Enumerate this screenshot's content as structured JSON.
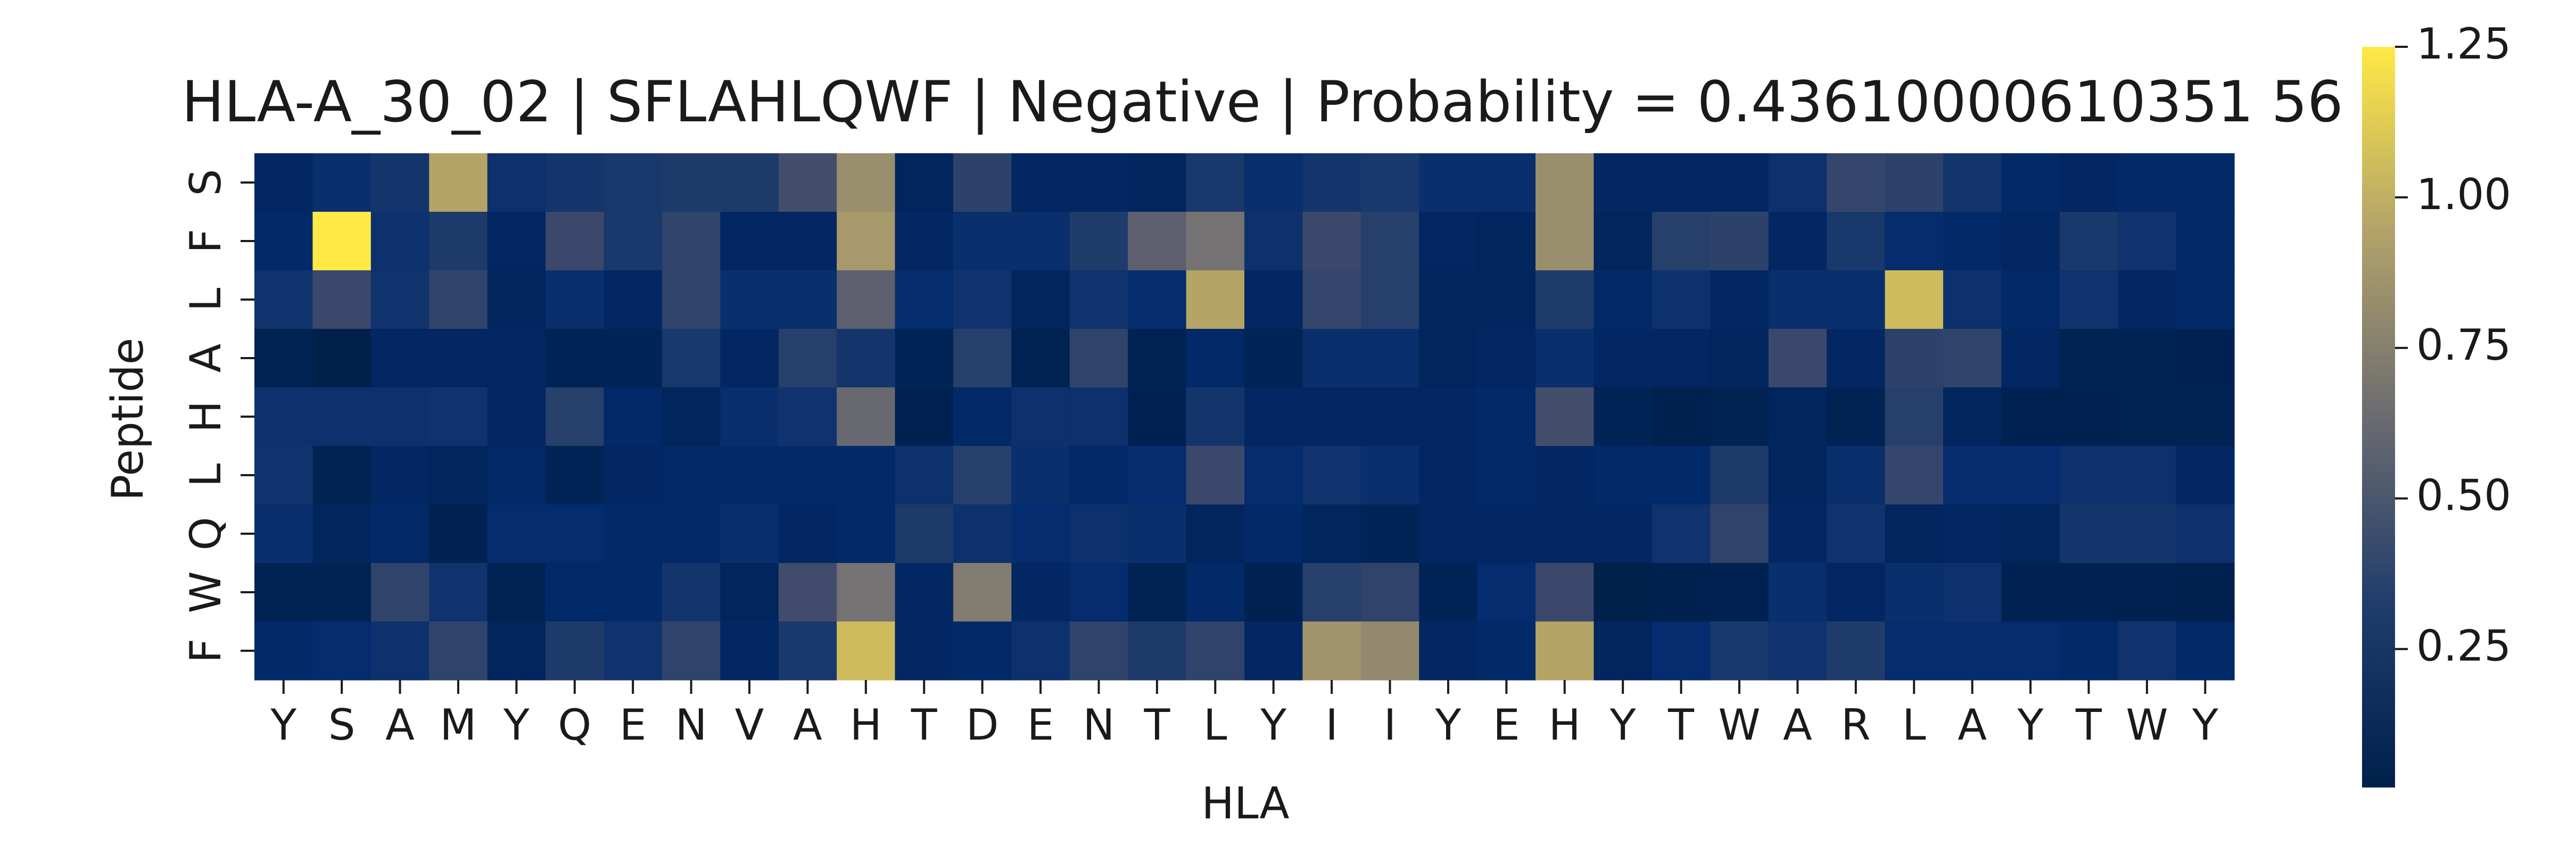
{
  "chart_data": {
    "type": "heatmap",
    "title": "HLA-A_30_02 | SFLAHLQWF | Negative | Probability = 0.43610000610351 56",
    "xlabel": "HLA",
    "ylabel": "Peptide",
    "x_tick_labels": [
      "Y",
      "S",
      "A",
      "M",
      "Y",
      "Q",
      "E",
      "N",
      "V",
      "A",
      "H",
      "T",
      "D",
      "E",
      "N",
      "T",
      "L",
      "Y",
      "I",
      "I",
      "Y",
      "E",
      "H",
      "Y",
      "T",
      "W",
      "A",
      "R",
      "L",
      "A",
      "Y",
      "T",
      "W",
      "Y"
    ],
    "y_tick_labels": [
      "S",
      "F",
      "L",
      "A",
      "H",
      "L",
      "Q",
      "W",
      "F"
    ],
    "values": [
      [
        0.1,
        0.18,
        0.25,
        0.95,
        0.2,
        0.25,
        0.28,
        0.3,
        0.3,
        0.5,
        0.85,
        0.08,
        0.38,
        0.1,
        0.1,
        0.08,
        0.28,
        0.18,
        0.25,
        0.28,
        0.18,
        0.18,
        0.85,
        0.1,
        0.1,
        0.1,
        0.2,
        0.42,
        0.38,
        0.25,
        0.12,
        0.1,
        0.12,
        0.12
      ],
      [
        0.12,
        1.25,
        0.2,
        0.3,
        0.1,
        0.45,
        0.28,
        0.4,
        0.1,
        0.1,
        0.9,
        0.1,
        0.18,
        0.18,
        0.32,
        0.6,
        0.7,
        0.2,
        0.45,
        0.35,
        0.1,
        0.08,
        0.85,
        0.08,
        0.35,
        0.38,
        0.1,
        0.28,
        0.15,
        0.12,
        0.1,
        0.28,
        0.22,
        0.12
      ],
      [
        0.22,
        0.45,
        0.22,
        0.4,
        0.08,
        0.18,
        0.1,
        0.4,
        0.18,
        0.18,
        0.6,
        0.15,
        0.22,
        0.08,
        0.22,
        0.15,
        0.95,
        0.1,
        0.42,
        0.35,
        0.08,
        0.08,
        0.32,
        0.12,
        0.2,
        0.1,
        0.18,
        0.18,
        1.05,
        0.2,
        0.12,
        0.22,
        0.1,
        0.12
      ],
      [
        0.05,
        0.02,
        0.1,
        0.1,
        0.1,
        0.06,
        0.06,
        0.28,
        0.1,
        0.35,
        0.25,
        0.06,
        0.35,
        0.05,
        0.4,
        0.05,
        0.12,
        0.06,
        0.18,
        0.18,
        0.08,
        0.1,
        0.18,
        0.1,
        0.1,
        0.08,
        0.45,
        0.1,
        0.38,
        0.4,
        0.1,
        0.05,
        0.05,
        0.04
      ],
      [
        0.2,
        0.2,
        0.2,
        0.22,
        0.1,
        0.35,
        0.12,
        0.08,
        0.18,
        0.22,
        0.65,
        0.04,
        0.12,
        0.2,
        0.2,
        0.04,
        0.25,
        0.1,
        0.1,
        0.1,
        0.1,
        0.12,
        0.5,
        0.06,
        0.03,
        0.05,
        0.08,
        0.05,
        0.35,
        0.08,
        0.04,
        0.04,
        0.05,
        0.05
      ],
      [
        0.22,
        0.05,
        0.1,
        0.08,
        0.12,
        0.06,
        0.1,
        0.12,
        0.12,
        0.12,
        0.12,
        0.2,
        0.35,
        0.18,
        0.12,
        0.15,
        0.45,
        0.15,
        0.22,
        0.18,
        0.1,
        0.12,
        0.1,
        0.12,
        0.12,
        0.3,
        0.08,
        0.18,
        0.42,
        0.15,
        0.15,
        0.2,
        0.2,
        0.1
      ],
      [
        0.18,
        0.08,
        0.12,
        0.04,
        0.15,
        0.15,
        0.12,
        0.12,
        0.18,
        0.1,
        0.12,
        0.3,
        0.2,
        0.15,
        0.2,
        0.18,
        0.08,
        0.12,
        0.08,
        0.06,
        0.1,
        0.1,
        0.1,
        0.1,
        0.22,
        0.4,
        0.1,
        0.22,
        0.08,
        0.1,
        0.08,
        0.25,
        0.25,
        0.2
      ],
      [
        0.05,
        0.05,
        0.4,
        0.22,
        0.05,
        0.12,
        0.12,
        0.25,
        0.08,
        0.48,
        0.7,
        0.1,
        0.75,
        0.1,
        0.15,
        0.05,
        0.12,
        0.04,
        0.35,
        0.4,
        0.06,
        0.15,
        0.45,
        0.02,
        0.03,
        0.04,
        0.18,
        0.1,
        0.18,
        0.2,
        0.04,
        0.04,
        0.04,
        0.03
      ],
      [
        0.12,
        0.15,
        0.2,
        0.4,
        0.08,
        0.3,
        0.22,
        0.4,
        0.1,
        0.28,
        1.05,
        0.1,
        0.12,
        0.2,
        0.4,
        0.3,
        0.4,
        0.1,
        0.88,
        0.82,
        0.1,
        0.12,
        0.95,
        0.08,
        0.15,
        0.28,
        0.22,
        0.32,
        0.15,
        0.15,
        0.15,
        0.12,
        0.22,
        0.12
      ]
    ],
    "vmin": 0.02,
    "vmax": 1.25,
    "colormap": "cividis",
    "colorbar_ticks": [
      0.25,
      0.5,
      0.75,
      1.0,
      1.25
    ],
    "colorbar_tick_labels": [
      "0.25",
      "0.50",
      "0.75",
      "1.00",
      "1.25"
    ]
  }
}
